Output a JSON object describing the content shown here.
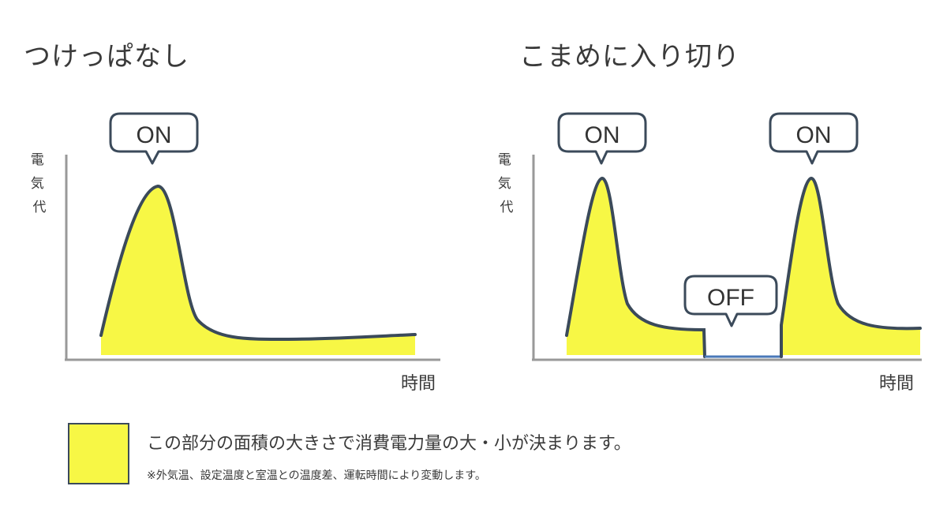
{
  "panels": [
    {
      "title": "つけっぱなし",
      "ylabel": "電気代",
      "xlabel": "時間",
      "bubbles": [
        "ON"
      ]
    },
    {
      "title": "こまめに入り切り",
      "ylabel": "電気代",
      "xlabel": "時間",
      "bubbles": [
        "ON",
        "OFF",
        "ON"
      ]
    }
  ],
  "legend": {
    "main": "この部分の面積の大きさで消費電力量の大・小が決まります。",
    "note": "※外気温、設定温度と室温との温度差、運転時間により変動します。"
  },
  "colors": {
    "fill": "#f7f745",
    "curve": "#3b4a5a",
    "off_line": "#4a78b8",
    "axis": "#999999"
  }
}
